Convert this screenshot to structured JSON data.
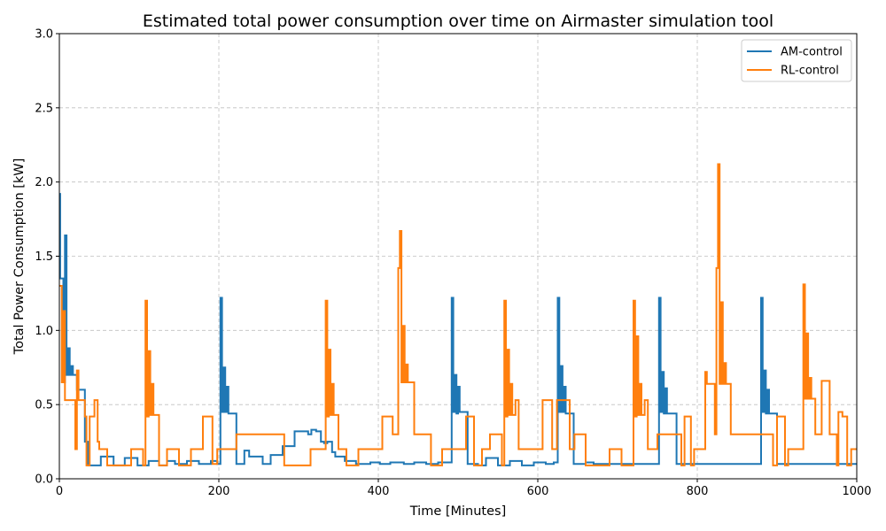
{
  "chart_data": {
    "type": "line",
    "title": "Estimated total power consumption over time on Airmaster simulation tool",
    "xlabel": "Time [Minutes]",
    "ylabel": "Total Power Consumption [kW]",
    "xlim": [
      0,
      1000
    ],
    "ylim": [
      0,
      3.0
    ],
    "x_ticks": [
      0,
      200,
      400,
      600,
      800,
      1000
    ],
    "x_tick_labels": [
      "0",
      "200",
      "400",
      "600",
      "800",
      "1000"
    ],
    "y_ticks": [
      0,
      0.5,
      1.0,
      1.5,
      2.0,
      2.5,
      3.0
    ],
    "y_tick_labels": [
      "0.0",
      "0.5",
      "1.0",
      "1.5",
      "2.0",
      "2.5",
      "3.0"
    ],
    "grid": true,
    "legend_position": "top-right",
    "step": true,
    "series": [
      {
        "name": "AM-control",
        "color": "#1f77b4",
        "points": [
          [
            0,
            1.92
          ],
          [
            1,
            1.35
          ],
          [
            5,
            0.65
          ],
          [
            7,
            1.64
          ],
          [
            9,
            0.7
          ],
          [
            11,
            0.88
          ],
          [
            13,
            0.7
          ],
          [
            15,
            0.76
          ],
          [
            17,
            0.7
          ],
          [
            22,
            0.6
          ],
          [
            32,
            0.25
          ],
          [
            36,
            0.09
          ],
          [
            52,
            0.15
          ],
          [
            68,
            0.09
          ],
          [
            82,
            0.14
          ],
          [
            98,
            0.09
          ],
          [
            112,
            0.12
          ],
          [
            125,
            0.09
          ],
          [
            135,
            0.12
          ],
          [
            145,
            0.1
          ],
          [
            160,
            0.12
          ],
          [
            175,
            0.1
          ],
          [
            190,
            0.12
          ],
          [
            198,
            0.1
          ],
          [
            202,
            1.22
          ],
          [
            204,
            0.45
          ],
          [
            206,
            0.75
          ],
          [
            208,
            0.45
          ],
          [
            210,
            0.62
          ],
          [
            212,
            0.44
          ],
          [
            222,
            0.1
          ],
          [
            232,
            0.19
          ],
          [
            238,
            0.15
          ],
          [
            255,
            0.1
          ],
          [
            265,
            0.16
          ],
          [
            280,
            0.22
          ],
          [
            295,
            0.32
          ],
          [
            312,
            0.3
          ],
          [
            316,
            0.33
          ],
          [
            322,
            0.32
          ],
          [
            328,
            0.25
          ],
          [
            332,
            0.24
          ],
          [
            336,
            0.25
          ],
          [
            342,
            0.18
          ],
          [
            346,
            0.15
          ],
          [
            358,
            0.12
          ],
          [
            372,
            0.1
          ],
          [
            390,
            0.11
          ],
          [
            402,
            0.1
          ],
          [
            415,
            0.11
          ],
          [
            432,
            0.1
          ],
          [
            445,
            0.11
          ],
          [
            460,
            0.1
          ],
          [
            475,
            0.11
          ],
          [
            492,
            1.22
          ],
          [
            494,
            0.45
          ],
          [
            496,
            0.7
          ],
          [
            498,
            0.44
          ],
          [
            500,
            0.62
          ],
          [
            502,
            0.45
          ],
          [
            512,
            0.1
          ],
          [
            525,
            0.09
          ],
          [
            535,
            0.14
          ],
          [
            550,
            0.09
          ],
          [
            565,
            0.12
          ],
          [
            580,
            0.09
          ],
          [
            595,
            0.11
          ],
          [
            610,
            0.1
          ],
          [
            620,
            0.11
          ],
          [
            625,
            1.22
          ],
          [
            627,
            0.45
          ],
          [
            629,
            0.76
          ],
          [
            631,
            0.45
          ],
          [
            633,
            0.62
          ],
          [
            635,
            0.44
          ],
          [
            645,
            0.1
          ],
          [
            660,
            0.11
          ],
          [
            670,
            0.1
          ],
          [
            752,
            1.22
          ],
          [
            754,
            0.45
          ],
          [
            756,
            0.72
          ],
          [
            758,
            0.44
          ],
          [
            760,
            0.61
          ],
          [
            762,
            0.44
          ],
          [
            774,
            0.1
          ],
          [
            880,
            1.22
          ],
          [
            882,
            0.45
          ],
          [
            884,
            0.73
          ],
          [
            886,
            0.44
          ],
          [
            888,
            0.6
          ],
          [
            890,
            0.44
          ],
          [
            900,
            0.1
          ],
          [
            1000,
            0.1
          ]
        ]
      },
      {
        "name": "RL-control",
        "color": "#ff7f0e",
        "points": [
          [
            0,
            1.3
          ],
          [
            3,
            0.65
          ],
          [
            5,
            1.13
          ],
          [
            7,
            0.53
          ],
          [
            20,
            0.2
          ],
          [
            22,
            0.73
          ],
          [
            24,
            0.53
          ],
          [
            32,
            0.42
          ],
          [
            34,
            0.09
          ],
          [
            38,
            0.42
          ],
          [
            44,
            0.53
          ],
          [
            48,
            0.25
          ],
          [
            50,
            0.2
          ],
          [
            60,
            0.09
          ],
          [
            90,
            0.2
          ],
          [
            105,
            0.09
          ],
          [
            108,
            1.2
          ],
          [
            110,
            0.42
          ],
          [
            112,
            0.86
          ],
          [
            114,
            0.43
          ],
          [
            116,
            0.64
          ],
          [
            118,
            0.43
          ],
          [
            125,
            0.09
          ],
          [
            135,
            0.2
          ],
          [
            150,
            0.09
          ],
          [
            165,
            0.2
          ],
          [
            180,
            0.42
          ],
          [
            192,
            0.1
          ],
          [
            198,
            0.2
          ],
          [
            222,
            0.3
          ],
          [
            282,
            0.09
          ],
          [
            315,
            0.2
          ],
          [
            334,
            1.2
          ],
          [
            336,
            0.42
          ],
          [
            338,
            0.87
          ],
          [
            340,
            0.43
          ],
          [
            342,
            0.64
          ],
          [
            344,
            0.43
          ],
          [
            350,
            0.2
          ],
          [
            360,
            0.09
          ],
          [
            375,
            0.2
          ],
          [
            405,
            0.42
          ],
          [
            418,
            0.3
          ],
          [
            425,
            1.42
          ],
          [
            427,
            1.67
          ],
          [
            429,
            0.65
          ],
          [
            431,
            1.03
          ],
          [
            433,
            0.65
          ],
          [
            435,
            0.77
          ],
          [
            437,
            0.65
          ],
          [
            445,
            0.3
          ],
          [
            466,
            0.09
          ],
          [
            480,
            0.2
          ],
          [
            510,
            0.42
          ],
          [
            520,
            0.09
          ],
          [
            530,
            0.2
          ],
          [
            540,
            0.3
          ],
          [
            555,
            0.09
          ],
          [
            558,
            1.2
          ],
          [
            560,
            0.42
          ],
          [
            562,
            0.87
          ],
          [
            564,
            0.43
          ],
          [
            566,
            0.64
          ],
          [
            568,
            0.43
          ],
          [
            572,
            0.53
          ],
          [
            576,
            0.2
          ],
          [
            606,
            0.53
          ],
          [
            618,
            0.2
          ],
          [
            624,
            0.53
          ],
          [
            640,
            0.2
          ],
          [
            646,
            0.3
          ],
          [
            660,
            0.09
          ],
          [
            690,
            0.2
          ],
          [
            705,
            0.09
          ],
          [
            720,
            1.2
          ],
          [
            722,
            0.42
          ],
          [
            724,
            0.96
          ],
          [
            726,
            0.43
          ],
          [
            728,
            0.64
          ],
          [
            730,
            0.43
          ],
          [
            734,
            0.53
          ],
          [
            738,
            0.2
          ],
          [
            750,
            0.3
          ],
          [
            780,
            0.09
          ],
          [
            784,
            0.42
          ],
          [
            792,
            0.09
          ],
          [
            796,
            0.2
          ],
          [
            810,
            0.72
          ],
          [
            812,
            0.64
          ],
          [
            822,
            0.3
          ],
          [
            824,
            1.42
          ],
          [
            826,
            2.12
          ],
          [
            828,
            0.64
          ],
          [
            830,
            1.19
          ],
          [
            832,
            0.64
          ],
          [
            834,
            0.78
          ],
          [
            836,
            0.64
          ],
          [
            842,
            0.3
          ],
          [
            895,
            0.09
          ],
          [
            900,
            0.42
          ],
          [
            910,
            0.09
          ],
          [
            914,
            0.2
          ],
          [
            933,
            1.31
          ],
          [
            935,
            0.54
          ],
          [
            937,
            0.98
          ],
          [
            939,
            0.54
          ],
          [
            941,
            0.68
          ],
          [
            943,
            0.54
          ],
          [
            948,
            0.3
          ],
          [
            956,
            0.66
          ],
          [
            966,
            0.3
          ],
          [
            975,
            0.09
          ],
          [
            977,
            0.45
          ],
          [
            982,
            0.42
          ],
          [
            988,
            0.09
          ],
          [
            993,
            0.2
          ],
          [
            1000,
            0.2
          ]
        ]
      }
    ]
  }
}
